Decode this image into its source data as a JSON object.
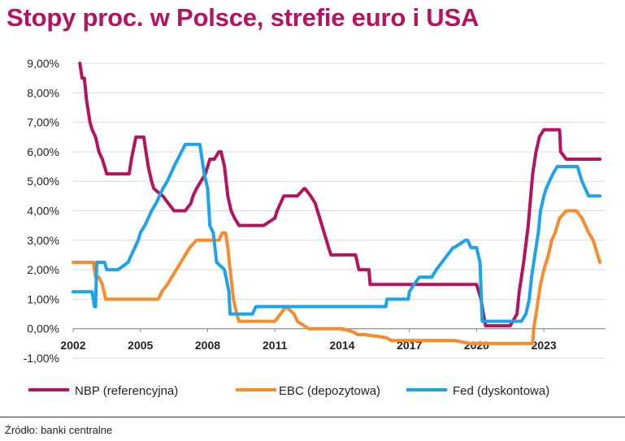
{
  "title": "Stopy proc. w Polsce, strefie euro i USA",
  "source": "Źródło: banki centralne",
  "chart_data": {
    "type": "line",
    "title": "Stopy proc. w Polsce, strefie euro i USA",
    "ylim": [
      -1,
      9
    ],
    "xlim": [
      2002,
      2025.75
    ],
    "ytick_labels": [
      "-1,00%",
      "0,00%",
      "1,00%",
      "2,00%",
      "3,00%",
      "4,00%",
      "5,00%",
      "6,00%",
      "7,00%",
      "8,00%",
      "9,00%"
    ],
    "ytick_values": [
      -1,
      0,
      1,
      2,
      3,
      4,
      5,
      6,
      7,
      8,
      9
    ],
    "xtick_labels": [
      "2002",
      "2005",
      "2008",
      "2011",
      "2014",
      "2017",
      "2020",
      "2023"
    ],
    "xtick_values": [
      2002,
      2005,
      2008,
      2011,
      2014,
      2017,
      2020,
      2023
    ],
    "grid": true,
    "legend_position": "bottom",
    "series": [
      {
        "name": "NBP (referencyjna)",
        "color": "#b5125f",
        "x": [
          2002.3,
          2002.4,
          2002.5,
          2002.6,
          2002.75,
          2002.85,
          2003.0,
          2003.15,
          2003.3,
          2003.5,
          2004.0,
          2004.5,
          2004.6,
          2004.8,
          2005.0,
          2005.15,
          2005.25,
          2005.35,
          2005.5,
          2005.6,
          2006.0,
          2006.5,
          2007.0,
          2007.25,
          2007.35,
          2007.5,
          2007.7,
          2007.9,
          2008.1,
          2008.3,
          2008.5,
          2008.6,
          2008.75,
          2008.9,
          2009.05,
          2009.2,
          2009.4,
          2009.6,
          2010.0,
          2010.5,
          2011.0,
          2011.1,
          2011.25,
          2011.4,
          2011.55,
          2012.0,
          2012.3,
          2012.35,
          2012.6,
          2012.8,
          2012.9,
          2013.0,
          2013.2,
          2013.4,
          2013.5,
          2014.0,
          2014.6,
          2014.75,
          2015.0,
          2015.2,
          2015.25,
          2016.0,
          2017.0,
          2018.0,
          2019.0,
          2020.0,
          2020.2,
          2020.3,
          2020.4,
          2021.0,
          2021.5,
          2021.8,
          2021.9,
          2022.0,
          2022.1,
          2022.3,
          2022.5,
          2022.65,
          2022.8,
          2023.0,
          2023.5,
          2023.7,
          2023.75,
          2024.0,
          2024.5,
          2025.0,
          2025.5
        ],
        "y": [
          9.0,
          8.5,
          8.5,
          7.75,
          7.0,
          6.75,
          6.5,
          6.0,
          5.75,
          5.25,
          5.25,
          5.25,
          5.75,
          6.5,
          6.5,
          6.5,
          6.0,
          5.5,
          5.0,
          4.75,
          4.5,
          4.0,
          4.0,
          4.25,
          4.5,
          4.75,
          5.0,
          5.25,
          5.75,
          5.75,
          6.0,
          6.0,
          5.5,
          4.5,
          4.0,
          3.75,
          3.5,
          3.5,
          3.5,
          3.5,
          3.75,
          4.0,
          4.25,
          4.5,
          4.5,
          4.5,
          4.75,
          4.75,
          4.5,
          4.25,
          4.0,
          3.75,
          3.25,
          2.75,
          2.5,
          2.5,
          2.5,
          2.0,
          2.0,
          2.0,
          1.5,
          1.5,
          1.5,
          1.5,
          1.5,
          1.5,
          1.0,
          0.5,
          0.1,
          0.1,
          0.1,
          0.5,
          1.25,
          1.75,
          2.25,
          3.5,
          5.25,
          6.0,
          6.5,
          6.75,
          6.75,
          6.75,
          6.0,
          5.75,
          5.75,
          5.75,
          5.75
        ]
      },
      {
        "name": "EBC (depozytowa)",
        "color": "#f98b2b",
        "x": [
          2002.0,
          2002.9,
          2003.0,
          2003.15,
          2003.3,
          2003.45,
          2004.0,
          2005.0,
          2005.8,
          2005.95,
          2006.2,
          2006.4,
          2006.6,
          2006.8,
          2007.0,
          2007.2,
          2007.5,
          2008.0,
          2008.5,
          2008.65,
          2008.8,
          2008.9,
          2009.0,
          2009.15,
          2009.3,
          2009.4,
          2010.0,
          2011.0,
          2011.25,
          2011.5,
          2011.85,
          2012.0,
          2012.5,
          2012.55,
          2013.0,
          2014.0,
          2014.45,
          2014.7,
          2015.0,
          2015.95,
          2016.2,
          2017.0,
          2018.0,
          2019.0,
          2019.7,
          2020.0,
          2021.0,
          2022.0,
          2022.5,
          2022.55,
          2022.7,
          2022.85,
          2023.0,
          2023.2,
          2023.35,
          2023.5,
          2023.7,
          2024.0,
          2024.45,
          2024.7,
          2024.85,
          2025.0,
          2025.2,
          2025.5
        ],
        "y": [
          2.25,
          2.25,
          1.75,
          1.75,
          1.5,
          1.0,
          1.0,
          1.0,
          1.0,
          1.25,
          1.5,
          1.75,
          2.0,
          2.25,
          2.5,
          2.75,
          3.0,
          3.0,
          3.0,
          3.25,
          3.25,
          2.75,
          2.0,
          1.0,
          0.5,
          0.25,
          0.25,
          0.25,
          0.5,
          0.75,
          0.5,
          0.25,
          0.0,
          0.0,
          0.0,
          0.0,
          -0.1,
          -0.2,
          -0.2,
          -0.3,
          -0.4,
          -0.4,
          -0.4,
          -0.4,
          -0.5,
          -0.5,
          -0.5,
          -0.5,
          -0.5,
          0.0,
          0.75,
          1.5,
          2.0,
          2.5,
          3.0,
          3.25,
          3.75,
          4.0,
          4.0,
          3.75,
          3.5,
          3.25,
          3.0,
          2.25
        ]
      },
      {
        "name": "Fed (dyskontowa)",
        "color": "#1ca3ec",
        "x": [
          2002.0,
          2002.75,
          2002.85,
          2002.95,
          2003.0,
          2003.05,
          2003.4,
          2003.5,
          2004.0,
          2004.45,
          2004.6,
          2004.75,
          2004.9,
          2005.0,
          2005.2,
          2005.35,
          2005.5,
          2005.7,
          2005.85,
          2006.0,
          2006.2,
          2006.35,
          2006.5,
          2007.0,
          2007.5,
          2007.65,
          2007.75,
          2007.85,
          2008.0,
          2008.1,
          2008.25,
          2008.4,
          2008.75,
          2008.95,
          2009.0,
          2010.0,
          2010.15,
          2011.0,
          2012.0,
          2013.0,
          2014.0,
          2015.0,
          2015.95,
          2016.0,
          2016.95,
          2017.0,
          2017.2,
          2017.45,
          2018.0,
          2018.2,
          2018.45,
          2018.7,
          2018.95,
          2019.0,
          2019.5,
          2019.6,
          2019.75,
          2019.85,
          2020.0,
          2020.15,
          2020.25,
          2021.0,
          2022.0,
          2022.2,
          2022.35,
          2022.45,
          2022.6,
          2022.75,
          2022.85,
          2023.0,
          2023.1,
          2023.25,
          2023.4,
          2023.6,
          2024.0,
          2024.5,
          2024.7,
          2024.85,
          2025.0,
          2025.5
        ],
        "y": [
          1.25,
          1.25,
          1.25,
          0.75,
          0.75,
          2.25,
          2.25,
          2.0,
          2.0,
          2.25,
          2.5,
          2.75,
          3.0,
          3.25,
          3.5,
          3.75,
          4.0,
          4.25,
          4.5,
          4.75,
          5.0,
          5.25,
          5.5,
          6.25,
          6.25,
          6.25,
          5.75,
          5.25,
          4.75,
          3.5,
          3.25,
          2.25,
          2.0,
          1.25,
          0.5,
          0.5,
          0.75,
          0.75,
          0.75,
          0.75,
          0.75,
          0.75,
          0.75,
          1.0,
          1.0,
          1.25,
          1.5,
          1.75,
          1.75,
          2.0,
          2.25,
          2.5,
          2.75,
          2.75,
          3.0,
          3.0,
          2.75,
          2.75,
          2.75,
          2.25,
          0.25,
          0.25,
          0.25,
          0.5,
          1.0,
          1.75,
          2.5,
          3.25,
          4.0,
          4.5,
          4.75,
          5.0,
          5.25,
          5.5,
          5.5,
          5.5,
          5.0,
          4.75,
          4.5,
          4.5
        ]
      }
    ]
  }
}
